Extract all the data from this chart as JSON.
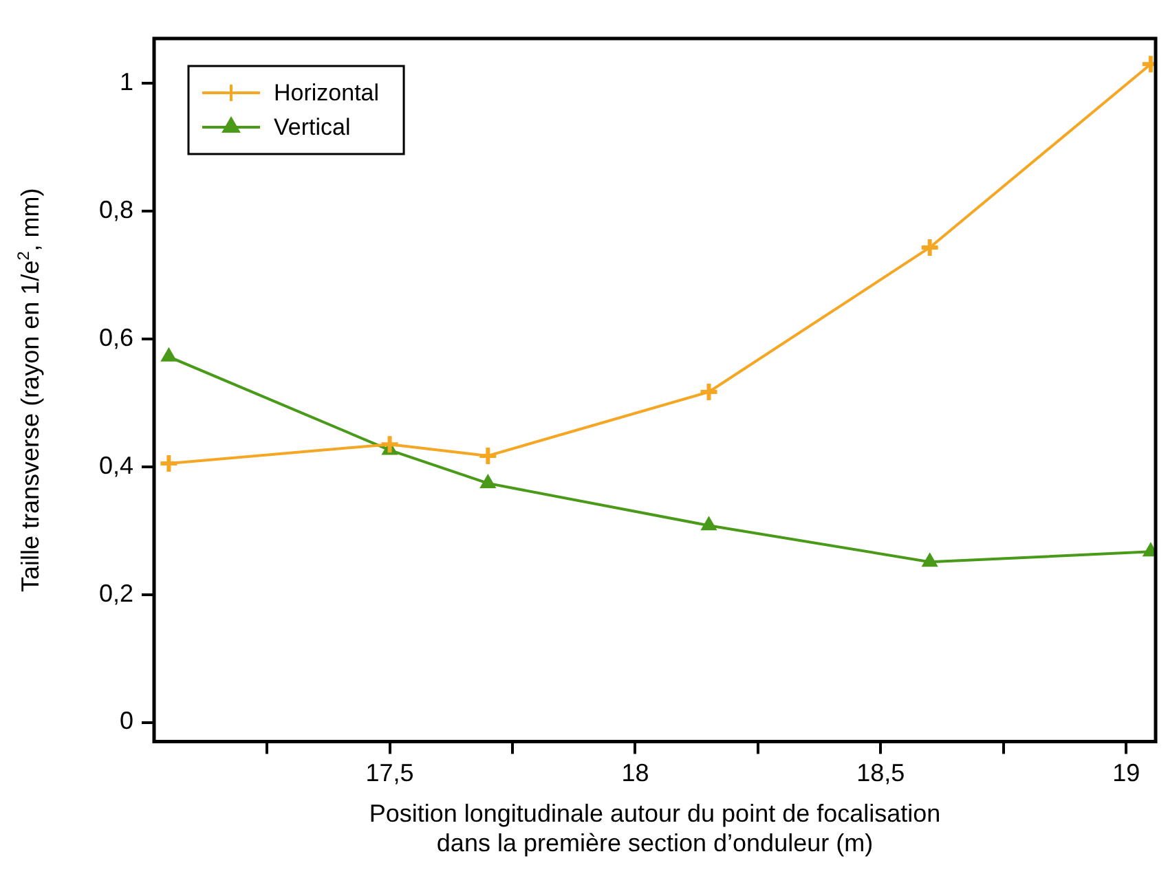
{
  "chart_data": {
    "type": "line",
    "xlabel": "Position longitudinale autour du point de focalisation\ndans la première section d’onduleur (m)",
    "ylabel": "Taille transverse (rayon en 1/e$^{2}$, mm)",
    "x": [
      17.05,
      17.5,
      17.7,
      18.15,
      18.6,
      19.05
    ],
    "series": [
      {
        "name": "Horizontal",
        "color": "#f5a623",
        "marker": "cross",
        "values": [
          0.405,
          0.435,
          0.417,
          0.517,
          0.743,
          1.03
        ]
      },
      {
        "name": "Vertical",
        "color": "#4a9a1a",
        "marker": "triangle",
        "values": [
          0.572,
          0.426,
          0.374,
          0.308,
          0.251,
          0.267
        ]
      }
    ],
    "xlim": [
      17.02,
      19.06
    ],
    "xticks": [
      {
        "value": 17.25,
        "label": null
      },
      {
        "value": 17.5,
        "label": "17,5"
      },
      {
        "value": 17.75,
        "label": null
      },
      18,
      {
        "value": 18.25,
        "label": null
      },
      {
        "value": 18.5,
        "label": "18,5"
      },
      {
        "value": 18.75,
        "label": null
      },
      19
    ],
    "ylim": [
      -0.03,
      1.07
    ],
    "yticks": [
      0,
      {
        "value": 0.2,
        "label": "0,2"
      },
      {
        "value": 0.4,
        "label": "0,4"
      },
      {
        "value": 0.6,
        "label": "0,6"
      },
      {
        "value": 0.8,
        "label": "0,8"
      },
      1
    ],
    "grid": false,
    "legend": "top left",
    "line_style": "solid"
  }
}
